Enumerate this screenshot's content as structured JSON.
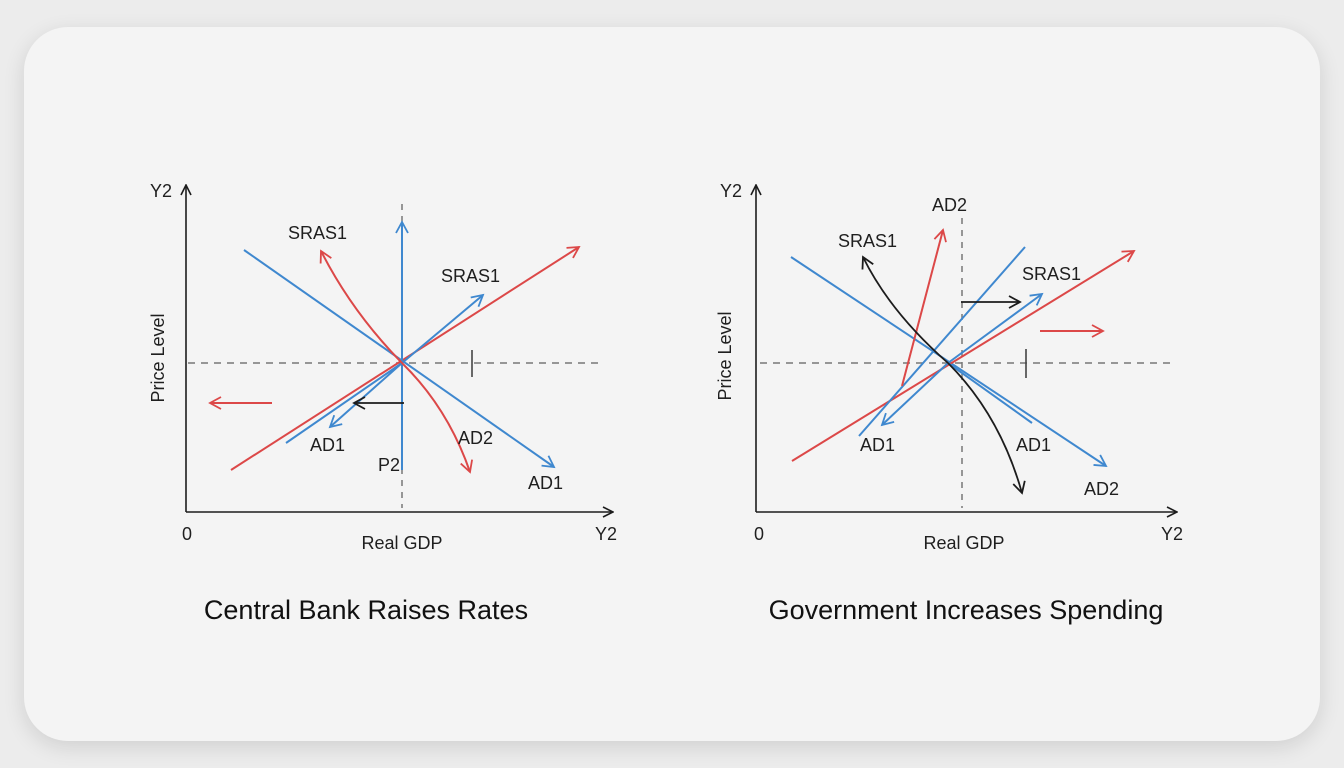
{
  "colors": {
    "red": "#dc4848",
    "blue": "#3f88cf",
    "black": "#1c1c1c",
    "dash": "#777777"
  },
  "panels": [
    {
      "title": "Central Bank Raises Rates",
      "y_axis_label": "Price Level",
      "x_axis_label": "Real GDP",
      "origin_label": "0",
      "y_axis_max_label": "Y2",
      "x_axis_max_label": "Y2",
      "curve_labels": {
        "sras1_top": "SRAS1",
        "sras1_right": "SRAS1",
        "ad1_left": "AD1",
        "ad2": "AD2",
        "p2": "P2",
        "ad1_bottom": "AD1"
      },
      "shift_direction": "left"
    },
    {
      "title": "Government Increases Spending",
      "y_axis_label": "Price Level",
      "x_axis_label": "Real GDP",
      "origin_label": "0",
      "y_axis_max_label": "Y2",
      "x_axis_max_label": "Y2",
      "curve_labels": {
        "ad2_top": "AD2",
        "sras1_left": "SRAS1",
        "sras1_right": "SRAS1",
        "ad1_left": "AD1",
        "ad1_right": "AD1",
        "ad2_bottom": "AD2"
      },
      "shift_direction": "right"
    }
  ]
}
